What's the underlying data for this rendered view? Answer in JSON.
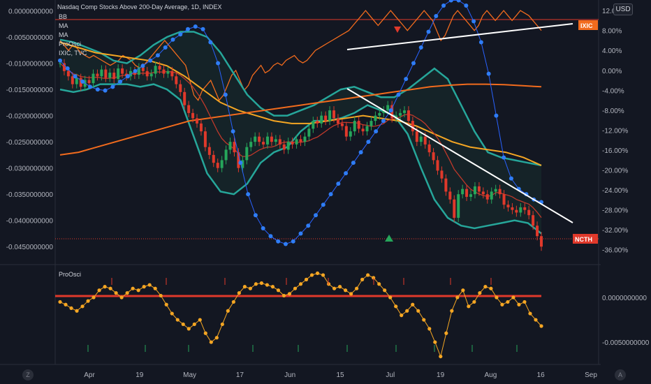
{
  "header": {
    "title": "Nasdaq Comp Stocks Above 200-Day Average, 1D, INDEX",
    "currency_button": "USD"
  },
  "legend": [
    "BB",
    "MA",
    "MA",
    "ProOsci",
    "IXIC, TVC"
  ],
  "oscillator_label": "ProOsci",
  "tags": {
    "ixic": "IXIC",
    "ncth": "NCTH"
  },
  "corner_buttons": {
    "left": "Z",
    "right": "A"
  },
  "colors": {
    "background": "#131722",
    "candle_up": "#26a65b",
    "candle_down": "#e0392b",
    "bollinger": "#26a69a",
    "ma_fast": "#f5a623",
    "ma_slow": "#f26b1d",
    "ma_red": "#c0392b",
    "ixic": "#f26b1d",
    "oscillator": "#f5a623",
    "blue_dots": "#2962ff",
    "trendline": "#ffffff"
  },
  "chart_data": {
    "type": "line",
    "title": "Nasdaq Comp Stocks Above 200-Day Average, 1D, INDEX",
    "x_ticks": [
      "Apr",
      "19",
      "May",
      "17",
      "Jun",
      "15",
      "Jul",
      "19",
      "Aug",
      "16",
      "Sep"
    ],
    "left_axis": {
      "ticks": [
        "0.0000000000",
        "-0.0050000000",
        "-0.0100000000",
        "-0.0150000000",
        "-0.0200000000",
        "-0.0250000000",
        "-0.0300000000",
        "-0.0350000000",
        "-0.0400000000",
        "-0.0450000000"
      ],
      "range": [
        -0.0475,
        0.001
      ]
    },
    "right_axis": {
      "ticks": [
        "12.00%",
        "8.00%",
        "4.00%",
        "0.00%",
        "-4.00%",
        "-8.00%",
        "-12.00%",
        "-16.00%",
        "-20.00%",
        "-24.00%",
        "-28.00%",
        "-32.00%",
        "-36.00%"
      ],
      "unit": "%",
      "range": [
        -38,
        13
      ]
    },
    "oscillator_axis": {
      "ticks": [
        "0.0000000000",
        "-0.0050000000"
      ],
      "range": [
        -0.0071,
        0.0032
      ]
    },
    "main_series_close": [
      -0.01,
      -0.0115,
      -0.0125,
      -0.014,
      -0.0128,
      -0.0145,
      -0.0132,
      -0.0138,
      -0.012,
      -0.0125,
      -0.0112,
      -0.0128,
      -0.0118,
      -0.013,
      -0.011,
      -0.012,
      -0.0125,
      -0.0115,
      -0.0122,
      -0.0108,
      -0.0115,
      -0.0125,
      -0.012,
      -0.0105,
      -0.0112,
      -0.012,
      -0.0115,
      -0.0125,
      -0.014,
      -0.0155,
      -0.018,
      -0.0195,
      -0.0205,
      -0.0215,
      -0.023,
      -0.026,
      -0.0275,
      -0.029,
      -0.03,
      -0.0285,
      -0.0265,
      -0.025,
      -0.027,
      -0.03,
      -0.0285,
      -0.026,
      -0.025,
      -0.024,
      -0.025,
      -0.0255,
      -0.024,
      -0.025,
      -0.0245,
      -0.0255,
      -0.0265,
      -0.025,
      -0.0255,
      -0.0245,
      -0.025,
      -0.024,
      -0.0225,
      -0.021,
      -0.0215,
      -0.02,
      -0.021,
      -0.019,
      -0.0205,
      -0.0215,
      -0.022,
      -0.024,
      -0.023,
      -0.021,
      -0.0225,
      -0.023,
      -0.022,
      -0.021,
      -0.02,
      -0.0195,
      -0.019,
      -0.018,
      -0.0205,
      -0.02,
      -0.0195,
      -0.019,
      -0.021,
      -0.023,
      -0.025,
      -0.024,
      -0.0255,
      -0.027,
      -0.0285,
      -0.0305,
      -0.032,
      -0.0345,
      -0.036,
      -0.0395,
      -0.035,
      -0.034,
      -0.0355,
      -0.035,
      -0.0335,
      -0.0345,
      -0.035,
      -0.036,
      -0.0345,
      -0.034,
      -0.035,
      -0.037,
      -0.0375,
      -0.038,
      -0.0385,
      -0.0375,
      -0.038,
      -0.039,
      -0.041,
      -0.043,
      -0.045
    ],
    "series": [
      {
        "name": "IXIC",
        "axis": "right",
        "values": [
          6,
          5,
          4,
          5,
          4.5,
          3.5,
          3,
          2.5,
          3,
          2.5,
          2,
          1.5,
          1,
          1.5,
          2,
          3,
          2.5,
          2,
          1,
          0.5,
          1,
          2,
          3,
          4,
          5,
          6,
          5,
          4,
          3,
          2,
          1,
          -2,
          -5,
          -6,
          -4,
          -3,
          -2,
          -4,
          -6,
          -5,
          -3,
          -1,
          0,
          -2,
          -4,
          -3,
          -1,
          0,
          1,
          -0.5,
          0,
          1,
          1.5,
          1,
          2,
          2.5,
          3,
          2,
          1.5,
          2,
          3,
          4,
          4.5,
          5,
          5.5,
          6,
          6.5,
          7,
          7.5,
          8,
          9,
          10,
          11,
          12,
          11,
          10,
          9,
          10,
          11,
          12,
          11,
          10,
          9,
          8,
          9,
          10,
          11,
          12,
          11,
          10,
          8,
          6,
          7,
          9,
          11,
          12,
          11,
          10,
          9,
          8,
          9,
          11,
          12,
          11,
          10,
          11,
          12,
          11,
          10,
          11,
          12,
          11.5,
          11,
          10,
          9,
          8
        ]
      },
      {
        "name": "Blue dots",
        "axis": "left",
        "values": [
          -0.0095,
          -0.011,
          -0.0125,
          -0.0135,
          -0.0145,
          -0.015,
          -0.0152,
          -0.0145,
          -0.0135,
          -0.0125,
          -0.0115,
          -0.0105,
          -0.0095,
          -0.0085,
          -0.007,
          -0.0055,
          -0.0045,
          -0.0035,
          -0.003,
          -0.0035,
          -0.006,
          -0.01,
          -0.016,
          -0.023,
          -0.029,
          -0.035,
          -0.039,
          -0.0415,
          -0.043,
          -0.044,
          -0.0445,
          -0.044,
          -0.0425,
          -0.041,
          -0.039,
          -0.037,
          -0.035,
          -0.033,
          -0.031,
          -0.029,
          -0.027,
          -0.025,
          -0.023,
          -0.021,
          -0.019,
          -0.016,
          -0.013,
          -0.01,
          -0.007,
          -0.004,
          -0.001,
          0.001,
          0.002,
          0.002,
          0.001,
          -0.002,
          -0.006,
          -0.012,
          -0.02,
          -0.028,
          -0.032,
          -0.034,
          -0.035,
          -0.036,
          -0.0365
        ]
      },
      {
        "name": "BB Upper",
        "axis": "left",
        "values": [
          -0.0055,
          -0.006,
          -0.007,
          -0.008,
          -0.0095,
          -0.01,
          -0.0085,
          -0.0065,
          -0.005,
          -0.004,
          -0.004,
          -0.005,
          -0.008,
          -0.012,
          -0.016,
          -0.0185,
          -0.02,
          -0.02,
          -0.019,
          -0.018,
          -0.0165,
          -0.015,
          -0.0145,
          -0.0155,
          -0.0165,
          -0.0165,
          -0.015,
          -0.013,
          -0.011,
          -0.013,
          -0.018,
          -0.023,
          -0.027,
          -0.028,
          -0.0285,
          -0.029,
          -0.0295
        ]
      },
      {
        "name": "BB Lower",
        "axis": "left",
        "values": [
          -0.015,
          -0.0155,
          -0.015,
          -0.014,
          -0.014,
          -0.014,
          -0.0145,
          -0.014,
          -0.015,
          -0.017,
          -0.024,
          -0.031,
          -0.0345,
          -0.035,
          -0.033,
          -0.029,
          -0.027,
          -0.026,
          -0.023,
          -0.021,
          -0.021,
          -0.0205,
          -0.0195,
          -0.018,
          -0.019,
          -0.02,
          -0.0235,
          -0.03,
          -0.036,
          -0.0395,
          -0.041,
          -0.0415,
          -0.041,
          -0.0405,
          -0.04,
          -0.0405,
          -0.0425
        ]
      },
      {
        "name": "MA",
        "axis": "left",
        "values": [
          -0.006,
          -0.007,
          -0.008,
          -0.0085,
          -0.009,
          -0.0095,
          -0.0105,
          -0.0125,
          -0.015,
          -0.0175,
          -0.019,
          -0.02,
          -0.021,
          -0.0215,
          -0.0215,
          -0.021,
          -0.0205,
          -0.02,
          -0.0205,
          -0.021,
          -0.022,
          -0.0235,
          -0.025,
          -0.026,
          -0.0265,
          -0.027,
          -0.028,
          -0.0295
        ]
      },
      {
        "name": "MA",
        "axis": "left",
        "values": [
          -0.0275,
          -0.027,
          -0.026,
          -0.025,
          -0.024,
          -0.023,
          -0.022,
          -0.021,
          -0.0205,
          -0.02,
          -0.0195,
          -0.019,
          -0.0185,
          -0.018,
          -0.0175,
          -0.017,
          -0.0165,
          -0.016,
          -0.0155,
          -0.015,
          -0.0145,
          -0.0142,
          -0.014,
          -0.014,
          -0.0141,
          -0.0143,
          -0.0145
        ]
      },
      {
        "name": "ProOsci",
        "axis": "oscillator",
        "values": [
          -0.0005,
          -0.0008,
          -0.0012,
          -0.0015,
          -0.001,
          -0.0004,
          0.0,
          0.0008,
          0.0012,
          0.001,
          0.0005,
          0.0,
          0.0005,
          0.001,
          0.0008,
          0.0012,
          0.0014,
          0.001,
          0.0002,
          -0.0008,
          -0.0018,
          -0.0025,
          -0.003,
          -0.0035,
          -0.003,
          -0.0025,
          -0.004,
          -0.005,
          -0.0045,
          -0.003,
          -0.0015,
          -0.0005,
          0.0005,
          0.0012,
          0.001,
          0.0015,
          0.0016,
          0.0014,
          0.0012,
          0.0008,
          0.0002,
          0.0004,
          0.001,
          0.0015,
          0.002,
          0.0025,
          0.0027,
          0.0025,
          0.0015,
          0.001,
          0.0012,
          0.0008,
          0.0004,
          0.001,
          0.002,
          0.0025,
          0.0022,
          0.0015,
          0.0008,
          0.0,
          -0.001,
          -0.002,
          -0.0015,
          -0.0008,
          -0.0015,
          -0.0025,
          -0.0035,
          -0.005,
          -0.0066,
          -0.004,
          -0.0015,
          0.0,
          0.0008,
          -0.001,
          -0.0005,
          0.0005,
          0.0012,
          0.001,
          0.0,
          -0.0008,
          -0.0005,
          0.0,
          -0.0008,
          -0.0005,
          -0.0018,
          -0.0025,
          -0.0032
        ]
      }
    ],
    "signals": {
      "triangle_up_x": 557,
      "triangle_down_x": 569
    },
    "grid": false,
    "legend_position": "top-left"
  }
}
